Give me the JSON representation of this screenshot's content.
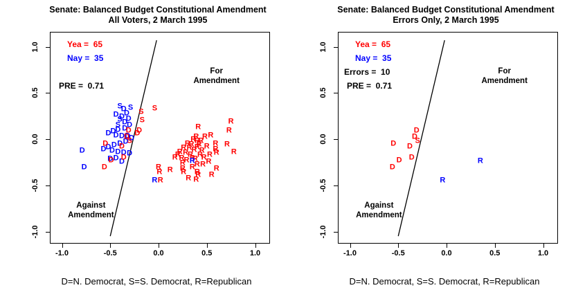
{
  "figure_title": "Senate: Balanced Budget Constitutional Amendment",
  "colors": {
    "yea": "#ff0000",
    "nay": "#0000ff",
    "axis": "#000000",
    "background": "#ffffff"
  },
  "chart_data": [
    {
      "type": "scatter",
      "title": "Senate: Balanced Budget Constitutional Amendment\nAll Voters, 2 March 1995",
      "caption": "D=N. Democrat, S=S. Democrat, R=Republican",
      "legend": {
        "D": "N. Democrat",
        "S": "S. Democrat",
        "R": "Republican"
      },
      "xlim": [
        -1.12,
        1.15
      ],
      "ylim": [
        -1.12,
        1.15
      ],
      "grid": false,
      "x_tick_values": [
        -1.0,
        -0.5,
        0.0,
        0.5,
        1.0
      ],
      "x_tick_labels": [
        "-1.0",
        "-0.5",
        "0.0",
        "0.5",
        "1.0"
      ],
      "y_tick_values": [
        1.0,
        0.5,
        0.0,
        -0.5,
        -1.0
      ],
      "y_tick_labels": [
        "1.0",
        "0.5",
        "0.0",
        "-0.5",
        "-1.0"
      ],
      "stats": [
        {
          "key": "yea",
          "text": "Yea =  65",
          "value": 65,
          "color": "#ff0000",
          "row": 0
        },
        {
          "key": "nay",
          "text": "Nay =  35",
          "value": 35,
          "color": "#0000ff",
          "row": 1
        },
        {
          "key": "pre",
          "text": "PRE =  0.71",
          "value": 0.71,
          "color": "#000000",
          "row": 3
        }
      ],
      "cutting_line": {
        "x1": -0.5,
        "y1": -1.05,
        "x2": -0.02,
        "y2": 1.07
      },
      "region_labels": [
        {
          "text": "For Amendment",
          "x": 0.6,
          "y": 0.68
        },
        {
          "text": "Against\nAmendment",
          "x": -0.7,
          "y": -0.77
        }
      ],
      "points": [
        [
          "S",
          "nay",
          -0.4,
          0.35
        ],
        [
          "S",
          "nay",
          -0.29,
          0.34
        ],
        [
          "S",
          "nay",
          -0.4,
          0.21
        ],
        [
          "S",
          "nay",
          -0.42,
          0.15
        ],
        [
          "D",
          "nay",
          -0.36,
          0.32
        ],
        [
          "D",
          "nay",
          -0.33,
          0.28
        ],
        [
          "D",
          "nay",
          -0.44,
          0.26
        ],
        [
          "D",
          "nay",
          -0.38,
          0.24
        ],
        [
          "D",
          "nay",
          -0.31,
          0.22
        ],
        [
          "D",
          "nay",
          -0.35,
          0.18
        ],
        [
          "D",
          "nay",
          -0.3,
          0.15
        ],
        [
          "D",
          "nay",
          -0.35,
          0.11
        ],
        [
          "D",
          "nay",
          -0.42,
          0.1
        ],
        [
          "D",
          "nay",
          -0.47,
          0.08
        ],
        [
          "D",
          "nay",
          -0.52,
          0.06
        ],
        [
          "D",
          "nay",
          -0.44,
          0.04
        ],
        [
          "D",
          "nay",
          -0.38,
          0.03
        ],
        [
          "D",
          "nay",
          -0.32,
          0.03
        ],
        [
          "D",
          "nay",
          -0.28,
          0.01
        ],
        [
          "D",
          "nay",
          -0.34,
          -0.03
        ],
        [
          "D",
          "nay",
          -0.4,
          -0.05
        ],
        [
          "D",
          "nay",
          -0.46,
          -0.07
        ],
        [
          "D",
          "nay",
          -0.52,
          -0.09
        ],
        [
          "D",
          "nay",
          -0.57,
          -0.11
        ],
        [
          "D",
          "nay",
          -0.48,
          -0.13
        ],
        [
          "D",
          "nay",
          -0.42,
          -0.14
        ],
        [
          "D",
          "nay",
          -0.36,
          -0.15
        ],
        [
          "D",
          "nay",
          -0.3,
          -0.16
        ],
        [
          "D",
          "nay",
          -0.44,
          -0.21
        ],
        [
          "D",
          "nay",
          -0.5,
          -0.22
        ],
        [
          "D",
          "nay",
          -0.38,
          -0.25
        ],
        [
          "D",
          "nay",
          -0.79,
          -0.13
        ],
        [
          "D",
          "nay",
          -0.77,
          -0.31
        ],
        [
          "D",
          "yea",
          -0.31,
          0.09
        ],
        [
          "D",
          "yea",
          -0.2,
          0.09
        ],
        [
          "D",
          "yea",
          -0.22,
          0.06
        ],
        [
          "D",
          "yea",
          -0.33,
          0.02
        ],
        [
          "D",
          "yea",
          -0.55,
          -0.05
        ],
        [
          "D",
          "yea",
          -0.38,
          -0.08
        ],
        [
          "D",
          "yea",
          -0.36,
          -0.2
        ],
        [
          "D",
          "yea",
          -0.49,
          -0.23
        ],
        [
          "D",
          "yea",
          -0.56,
          -0.31
        ],
        [
          "S",
          "yea",
          -0.04,
          0.33
        ],
        [
          "S",
          "yea",
          -0.18,
          0.29
        ],
        [
          "S",
          "yea",
          -0.17,
          0.2
        ],
        [
          "S",
          "yea",
          -0.3,
          -0.02
        ],
        [
          "R",
          "yea",
          0.41,
          0.13
        ],
        [
          "R",
          "yea",
          0.75,
          0.19
        ],
        [
          "R",
          "yea",
          0.73,
          0.09
        ],
        [
          "R",
          "yea",
          0.39,
          0.02
        ],
        [
          "R",
          "yea",
          0.48,
          0.02
        ],
        [
          "R",
          "yea",
          0.54,
          0.04
        ],
        [
          "R",
          "yea",
          0.4,
          -0.02
        ],
        [
          "R",
          "yea",
          0.34,
          -0.06
        ],
        [
          "R",
          "yea",
          0.42,
          -0.06
        ],
        [
          "R",
          "yea",
          0.59,
          -0.05
        ],
        [
          "R",
          "yea",
          0.71,
          -0.06
        ],
        [
          "R",
          "yea",
          0.26,
          -0.1
        ],
        [
          "R",
          "yea",
          0.32,
          -0.1
        ],
        [
          "R",
          "yea",
          0.4,
          -0.09
        ],
        [
          "R",
          "yea",
          0.59,
          -0.11
        ],
        [
          "R",
          "yea",
          0.78,
          -0.14
        ],
        [
          "R",
          "yea",
          0.17,
          -0.2
        ],
        [
          "R",
          "yea",
          0.24,
          -0.21
        ],
        [
          "R",
          "yea",
          0.29,
          -0.23
        ],
        [
          "R",
          "yea",
          0.4,
          -0.28
        ],
        [
          "R",
          "yea",
          0.53,
          -0.17
        ],
        [
          "R",
          "yea",
          0.6,
          -0.15
        ],
        [
          "R",
          "yea",
          0.0,
          -0.31
        ],
        [
          "R",
          "yea",
          0.01,
          -0.36
        ],
        [
          "R",
          "yea",
          0.12,
          -0.34
        ],
        [
          "R",
          "yea",
          0.25,
          -0.32
        ],
        [
          "R",
          "yea",
          0.26,
          -0.36
        ],
        [
          "R",
          "yea",
          0.4,
          -0.36
        ],
        [
          "R",
          "yea",
          0.41,
          -0.39
        ],
        [
          "R",
          "yea",
          0.6,
          -0.32
        ],
        [
          "R",
          "yea",
          0.55,
          -0.39
        ],
        [
          "R",
          "yea",
          0.31,
          -0.43
        ],
        [
          "R",
          "yea",
          0.39,
          -0.44
        ],
        [
          "R",
          "yea",
          0.02,
          -0.45
        ],
        [
          "R",
          "yea",
          0.36,
          -0.01
        ],
        [
          "R",
          "yea",
          0.37,
          -0.12
        ],
        [
          "R",
          "yea",
          0.33,
          -0.17
        ],
        [
          "R",
          "yea",
          0.28,
          -0.15
        ],
        [
          "R",
          "yea",
          0.22,
          -0.14
        ],
        [
          "R",
          "yea",
          0.45,
          -0.13
        ],
        [
          "R",
          "yea",
          0.47,
          -0.2
        ],
        [
          "R",
          "yea",
          0.5,
          -0.08
        ],
        [
          "R",
          "yea",
          0.44,
          -0.02
        ],
        [
          "R",
          "yea",
          0.35,
          -0.21
        ],
        [
          "R",
          "yea",
          0.3,
          -0.05
        ],
        [
          "R",
          "yea",
          0.25,
          -0.26
        ],
        [
          "R",
          "yea",
          0.35,
          -0.31
        ],
        [
          "R",
          "yea",
          0.46,
          -0.28
        ],
        [
          "R",
          "yea",
          0.52,
          -0.25
        ],
        [
          "R",
          "yea",
          0.2,
          -0.17
        ],
        [
          "R",
          "yea",
          0.43,
          -0.17
        ],
        [
          "R",
          "yea",
          0.38,
          -0.22
        ],
        [
          "R",
          "nay",
          0.35,
          -0.24
        ],
        [
          "R",
          "nay",
          -0.04,
          -0.45
        ]
      ]
    },
    {
      "type": "scatter",
      "title": "Senate: Balanced Budget Constitutional Amendment\nErrors Only, 2 March 1995",
      "caption": "D=N. Democrat, S=S. Democrat, R=Republican",
      "legend": {
        "D": "N. Democrat",
        "S": "S. Democrat",
        "R": "Republican"
      },
      "xlim": [
        -1.12,
        1.15
      ],
      "ylim": [
        -1.12,
        1.15
      ],
      "grid": false,
      "x_tick_values": [
        -1.0,
        -0.5,
        0.0,
        0.5,
        1.0
      ],
      "x_tick_labels": [
        "-1.0",
        "-0.5",
        "0.0",
        "0.5",
        "1.0"
      ],
      "y_tick_values": [
        1.0,
        0.5,
        0.0,
        -0.5,
        -1.0
      ],
      "y_tick_labels": [
        "1.0",
        "0.5",
        "0.0",
        "-0.5",
        "-1.0"
      ],
      "stats": [
        {
          "key": "yea",
          "text": "Yea =  65",
          "value": 65,
          "color": "#ff0000",
          "row": 0
        },
        {
          "key": "nay",
          "text": "Nay =  35",
          "value": 35,
          "color": "#0000ff",
          "row": 1
        },
        {
          "key": "errors",
          "text": "Errors =  10",
          "value": 10,
          "color": "#000000",
          "row": 2
        },
        {
          "key": "pre",
          "text": "PRE =  0.71",
          "value": 0.71,
          "color": "#000000",
          "row": 3
        }
      ],
      "cutting_line": {
        "x1": -0.5,
        "y1": -1.05,
        "x2": -0.02,
        "y2": 1.07
      },
      "region_labels": [
        {
          "text": "For Amendment",
          "x": 0.6,
          "y": 0.68
        },
        {
          "text": "Against\nAmendment",
          "x": -0.7,
          "y": -0.77
        }
      ],
      "points": [
        [
          "D",
          "yea",
          -0.31,
          0.09
        ],
        [
          "S",
          "yea",
          -0.3,
          -0.02
        ],
        [
          "D",
          "yea",
          -0.33,
          0.02
        ],
        [
          "D",
          "yea",
          -0.38,
          -0.08
        ],
        [
          "D",
          "yea",
          -0.55,
          -0.05
        ],
        [
          "D",
          "yea",
          -0.36,
          -0.2
        ],
        [
          "D",
          "yea",
          -0.49,
          -0.23
        ],
        [
          "D",
          "yea",
          -0.56,
          -0.31
        ],
        [
          "R",
          "nay",
          0.35,
          -0.24
        ],
        [
          "R",
          "nay",
          -0.04,
          -0.45
        ]
      ]
    }
  ]
}
